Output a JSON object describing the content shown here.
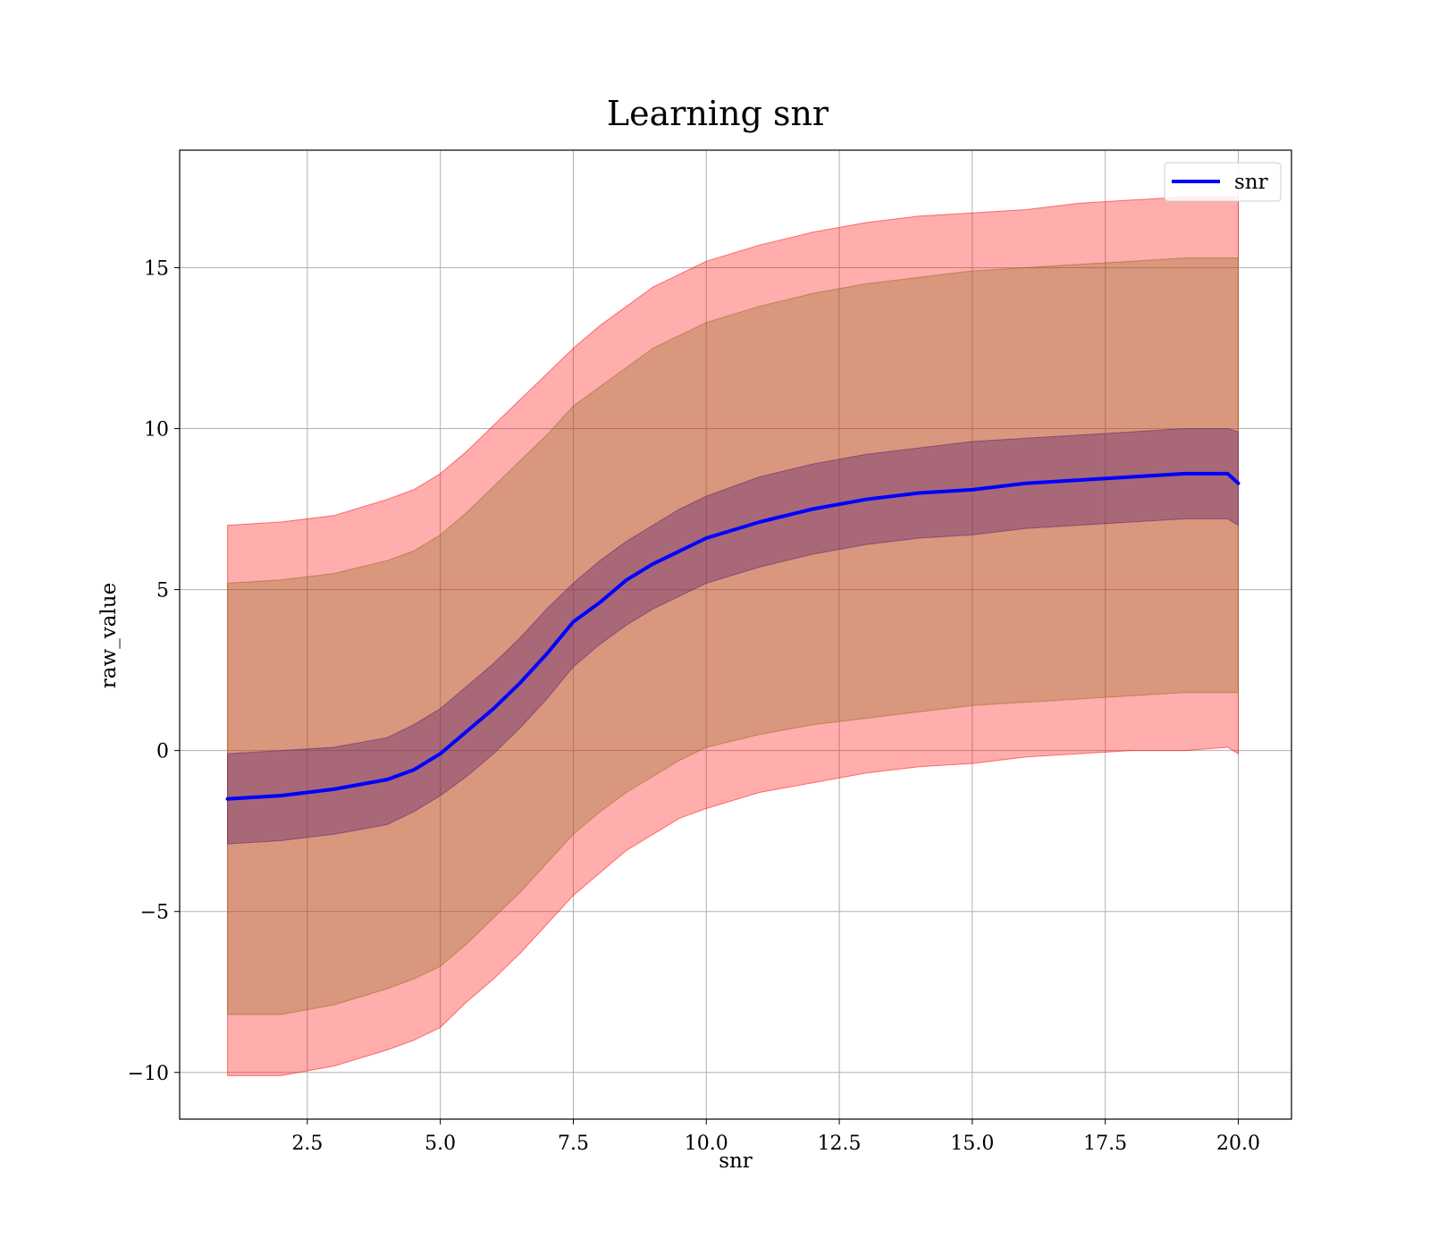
{
  "chart_data": {
    "type": "area",
    "title": "Learning snr",
    "xlabel": "snr",
    "ylabel": "raw_value",
    "xlim": [
      0.1,
      21.0
    ],
    "ylim": [
      -11.45,
      18.65
    ],
    "x_ticks": [
      2.5,
      5.0,
      7.5,
      10.0,
      12.5,
      15.0,
      17.5,
      20.0
    ],
    "x_tick_labels": [
      "2.5",
      "5.0",
      "7.5",
      "10.0",
      "12.5",
      "15.0",
      "17.5",
      "20.0"
    ],
    "y_ticks": [
      -10,
      -5,
      0,
      5,
      10,
      15
    ],
    "y_tick_labels": [
      "−10",
      "−5",
      "0",
      "5",
      "10",
      "15"
    ],
    "grid": true,
    "legend_position": "top-right",
    "x": [
      1.0,
      2.0,
      3.0,
      4.0,
      4.5,
      5.0,
      5.5,
      6.0,
      6.5,
      7.0,
      7.5,
      8.0,
      8.5,
      9.0,
      9.5,
      10.0,
      11.0,
      12.0,
      13.0,
      14.0,
      15.0,
      16.0,
      17.0,
      18.0,
      19.0,
      19.8,
      20.0
    ],
    "series": [
      {
        "name": "snr",
        "color": "#0000ff",
        "values": [
          -1.5,
          -1.4,
          -1.2,
          -0.9,
          -0.6,
          -0.1,
          0.6,
          1.3,
          2.1,
          3.0,
          4.0,
          4.6,
          5.3,
          5.8,
          6.2,
          6.6,
          7.1,
          7.5,
          7.8,
          8.0,
          8.1,
          8.3,
          8.4,
          8.5,
          8.6,
          8.6,
          8.3
        ]
      }
    ],
    "bands": [
      {
        "color": "#ff0000",
        "opacity": 0.32,
        "upper": [
          7.0,
          7.1,
          7.3,
          7.8,
          8.1,
          8.6,
          9.3,
          10.1,
          10.9,
          11.7,
          12.5,
          13.2,
          13.8,
          14.4,
          14.8,
          15.2,
          15.7,
          16.1,
          16.4,
          16.6,
          16.7,
          16.8,
          17.0,
          17.1,
          17.2,
          17.2,
          17.2
        ],
        "lower": [
          -10.1,
          -10.1,
          -9.8,
          -9.3,
          -9.0,
          -8.6,
          -7.8,
          -7.1,
          -6.3,
          -5.4,
          -4.5,
          -3.8,
          -3.1,
          -2.6,
          -2.1,
          -1.8,
          -1.3,
          -1.0,
          -0.7,
          -0.5,
          -0.4,
          -0.2,
          -0.1,
          0.0,
          0.0,
          0.1,
          -0.1
        ]
      },
      {
        "color": "#8b6a1a",
        "opacity": 0.33,
        "upper": [
          5.2,
          5.3,
          5.5,
          5.9,
          6.2,
          6.7,
          7.4,
          8.2,
          9.0,
          9.8,
          10.7,
          11.3,
          11.9,
          12.5,
          12.9,
          13.3,
          13.8,
          14.2,
          14.5,
          14.7,
          14.9,
          15.0,
          15.1,
          15.2,
          15.3,
          15.3,
          15.3
        ],
        "lower": [
          -8.2,
          -8.2,
          -7.9,
          -7.4,
          -7.1,
          -6.7,
          -6.0,
          -5.2,
          -4.4,
          -3.5,
          -2.6,
          -1.9,
          -1.3,
          -0.8,
          -0.3,
          0.1,
          0.5,
          0.8,
          1.0,
          1.2,
          1.4,
          1.5,
          1.6,
          1.7,
          1.8,
          1.8,
          1.8
        ]
      },
      {
        "color": "#5a1e6e",
        "opacity": 0.38,
        "upper": [
          -0.1,
          0.0,
          0.1,
          0.4,
          0.8,
          1.3,
          2.0,
          2.7,
          3.5,
          4.4,
          5.2,
          5.9,
          6.5,
          7.0,
          7.5,
          7.9,
          8.5,
          8.9,
          9.2,
          9.4,
          9.6,
          9.7,
          9.8,
          9.9,
          10.0,
          10.0,
          9.9
        ],
        "lower": [
          -2.9,
          -2.8,
          -2.6,
          -2.3,
          -1.9,
          -1.4,
          -0.8,
          -0.1,
          0.7,
          1.6,
          2.6,
          3.3,
          3.9,
          4.4,
          4.8,
          5.2,
          5.7,
          6.1,
          6.4,
          6.6,
          6.7,
          6.9,
          7.0,
          7.1,
          7.2,
          7.2,
          7.0
        ]
      }
    ]
  }
}
